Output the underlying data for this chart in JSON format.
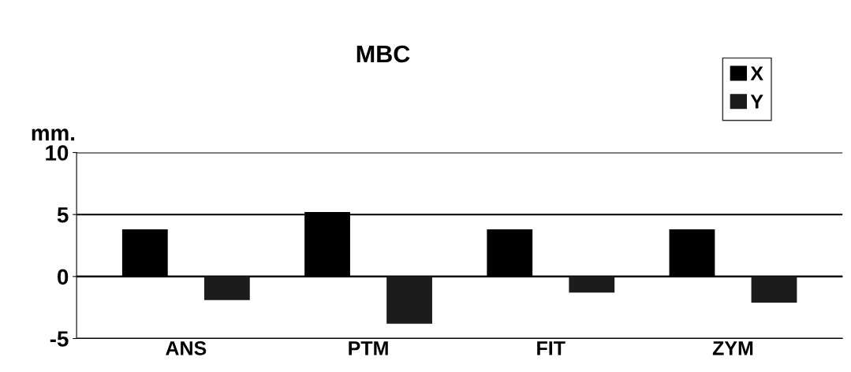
{
  "chart_data": {
    "type": "bar",
    "title": "MBC",
    "ylabel": "mm.",
    "categories": [
      "ANS",
      "PTM",
      "FIT",
      "ZYM"
    ],
    "series": [
      {
        "name": "X",
        "color": "#000000",
        "values": [
          3.8,
          5.2,
          3.8,
          3.8
        ]
      },
      {
        "name": "Y",
        "color": "#1c1c1c",
        "values": [
          -1.9,
          -3.8,
          -1.3,
          -2.1
        ]
      }
    ],
    "ylim": [
      -5,
      10
    ],
    "yticks": [
      -5,
      0,
      5,
      10
    ],
    "grid": "y",
    "legend": "top right"
  }
}
